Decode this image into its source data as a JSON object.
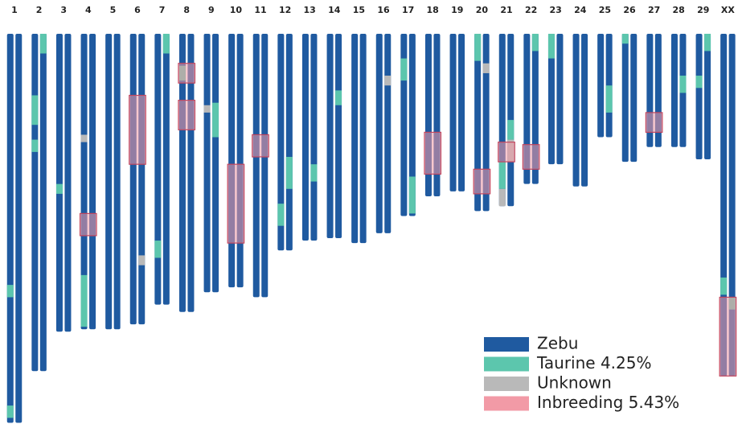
{
  "chart_data": {
    "type": "chromosome-painting",
    "legend": [
      {
        "name": "Zebu",
        "color": "#1f5aa0"
      },
      {
        "name": "Taurine 4.25%",
        "color": "#5cc6ad"
      },
      {
        "name": "Unknown",
        "color": "#b9b9b9"
      },
      {
        "name": "Inbreeding 5.43%",
        "color": "#f29aa6"
      }
    ],
    "chromosomes": [
      {
        "label": "1",
        "length": 158,
        "segments": [
          {
            "ancestry": 1,
            "haplotype": 0,
            "start": 102,
            "end": 107
          },
          {
            "ancestry": 1,
            "haplotype": 0,
            "start": 151,
            "end": 156
          }
        ]
      },
      {
        "label": "2",
        "length": 137,
        "segments": [
          {
            "ancestry": 1,
            "haplotype": 1,
            "start": 0,
            "end": 8
          },
          {
            "ancestry": 1,
            "haplotype": 0,
            "start": 25,
            "end": 37
          },
          {
            "ancestry": 1,
            "haplotype": 0,
            "start": 43,
            "end": 48
          }
        ]
      },
      {
        "label": "3",
        "length": 121,
        "segments": [
          {
            "ancestry": 1,
            "haplotype": 0,
            "start": 61,
            "end": 65
          }
        ]
      },
      {
        "label": "4",
        "length": 120,
        "segments": [
          {
            "ancestry": 2,
            "haplotype": 0,
            "start": 41,
            "end": 44
          },
          {
            "ancestry": 1,
            "haplotype": 0,
            "start": 98,
            "end": 119
          },
          {
            "ancestry": 3,
            "start": 73,
            "end": 82
          }
        ]
      },
      {
        "label": "5",
        "length": 120,
        "segments": []
      },
      {
        "label": "6",
        "length": 118,
        "segments": [
          {
            "ancestry": 2,
            "haplotype": 1,
            "start": 90,
            "end": 94
          },
          {
            "ancestry": 3,
            "start": 25,
            "end": 53
          }
        ]
      },
      {
        "label": "7",
        "length": 110,
        "segments": [
          {
            "ancestry": 1,
            "haplotype": 1,
            "start": 0,
            "end": 8
          },
          {
            "ancestry": 1,
            "haplotype": 0,
            "start": 84,
            "end": 91
          }
        ]
      },
      {
        "label": "8",
        "length": 113,
        "segments": [
          {
            "ancestry": 1,
            "haplotype": 0,
            "start": 13,
            "end": 19
          },
          {
            "ancestry": 3,
            "start": 12,
            "end": 20
          },
          {
            "ancestry": 3,
            "start": 27,
            "end": 39
          }
        ]
      },
      {
        "label": "9",
        "length": 105,
        "segments": [
          {
            "ancestry": 1,
            "haplotype": 1,
            "start": 28,
            "end": 42
          },
          {
            "ancestry": 2,
            "haplotype": 0,
            "start": 29,
            "end": 32
          }
        ]
      },
      {
        "label": "10",
        "length": 103,
        "segments": [
          {
            "ancestry": 3,
            "start": 53,
            "end": 85
          }
        ]
      },
      {
        "label": "11",
        "length": 107,
        "segments": [
          {
            "ancestry": 3,
            "start": 41,
            "end": 50
          }
        ]
      },
      {
        "label": "12",
        "length": 88,
        "segments": [
          {
            "ancestry": 1,
            "haplotype": 1,
            "start": 50,
            "end": 63
          },
          {
            "ancestry": 1,
            "haplotype": 0,
            "start": 69,
            "end": 78
          }
        ]
      },
      {
        "label": "13",
        "length": 84,
        "segments": [
          {
            "ancestry": 1,
            "haplotype": 1,
            "start": 53,
            "end": 60
          }
        ]
      },
      {
        "label": "14",
        "length": 83,
        "segments": [
          {
            "ancestry": 1,
            "haplotype": 1,
            "start": 23,
            "end": 29
          }
        ]
      },
      {
        "label": "15",
        "length": 85,
        "segments": []
      },
      {
        "label": "16",
        "length": 81,
        "segments": [
          {
            "ancestry": 2,
            "haplotype": 1,
            "start": 17,
            "end": 21
          }
        ]
      },
      {
        "label": "17",
        "length": 74,
        "segments": [
          {
            "ancestry": 1,
            "haplotype": 0,
            "start": 10,
            "end": 19
          },
          {
            "ancestry": 1,
            "haplotype": 1,
            "start": 58,
            "end": 73
          }
        ]
      },
      {
        "label": "18",
        "length": 66,
        "segments": [
          {
            "ancestry": 3,
            "start": 40,
            "end": 57
          }
        ]
      },
      {
        "label": "19",
        "length": 64,
        "segments": []
      },
      {
        "label": "20",
        "length": 72,
        "segments": [
          {
            "ancestry": 1,
            "haplotype": 0,
            "start": 0,
            "end": 11
          },
          {
            "ancestry": 2,
            "haplotype": 1,
            "start": 12,
            "end": 16
          },
          {
            "ancestry": 3,
            "start": 55,
            "end": 65
          }
        ]
      },
      {
        "label": "21",
        "length": 70,
        "segments": [
          {
            "ancestry": 1,
            "haplotype": 1,
            "start": 35,
            "end": 43
          },
          {
            "ancestry": 2,
            "haplotype": 1,
            "start": 43,
            "end": 52
          },
          {
            "ancestry": 1,
            "haplotype": 0,
            "start": 52,
            "end": 63
          },
          {
            "ancestry": 2,
            "haplotype": 0,
            "start": 63,
            "end": 70
          },
          {
            "ancestry": 3,
            "start": 44,
            "end": 52
          }
        ]
      },
      {
        "label": "22",
        "length": 61,
        "segments": [
          {
            "ancestry": 1,
            "haplotype": 1,
            "start": 0,
            "end": 7
          },
          {
            "ancestry": 3,
            "start": 45,
            "end": 55
          }
        ]
      },
      {
        "label": "23",
        "length": 53,
        "segments": [
          {
            "ancestry": 1,
            "haplotype": 0,
            "start": 0,
            "end": 10
          }
        ]
      },
      {
        "label": "24",
        "length": 62,
        "segments": []
      },
      {
        "label": "25",
        "length": 42,
        "segments": [
          {
            "ancestry": 1,
            "haplotype": 1,
            "start": 21,
            "end": 32
          }
        ]
      },
      {
        "label": "26",
        "length": 52,
        "segments": [
          {
            "ancestry": 1,
            "haplotype": 0,
            "start": 0,
            "end": 4
          }
        ]
      },
      {
        "label": "27",
        "length": 46,
        "segments": [
          {
            "ancestry": 3,
            "start": 32,
            "end": 40
          }
        ]
      },
      {
        "label": "28",
        "length": 46,
        "segments": [
          {
            "ancestry": 1,
            "haplotype": 1,
            "start": 17,
            "end": 24
          }
        ]
      },
      {
        "label": "29",
        "length": 51,
        "segments": [
          {
            "ancestry": 1,
            "haplotype": 1,
            "start": 0,
            "end": 7
          },
          {
            "ancestry": 1,
            "haplotype": 0,
            "start": 17,
            "end": 22
          }
        ]
      },
      {
        "label": "XX",
        "length": 139,
        "segments": [
          {
            "ancestry": 1,
            "haplotype": 0,
            "start": 99,
            "end": 106
          },
          {
            "ancestry": 1,
            "haplotype": 1,
            "start": 107,
            "end": 112
          },
          {
            "ancestry": 3,
            "start": 107,
            "end": 139
          }
        ]
      }
    ]
  }
}
